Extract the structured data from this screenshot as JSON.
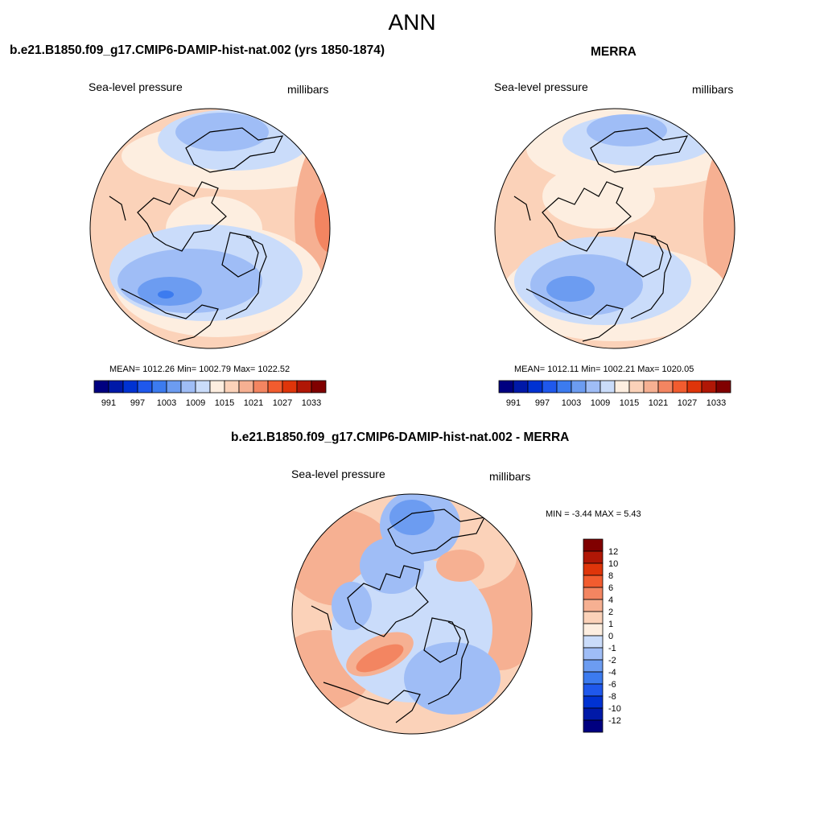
{
  "main_title": "ANN",
  "palette": [
    "#000080",
    "#0019a8",
    "#0032d2",
    "#1f58ec",
    "#3c7bef",
    "#6c9cf1",
    "#9fbdf6",
    "#cadcfa",
    "#fdeee0",
    "#fbd2b9",
    "#f6b092",
    "#f38561",
    "#f25c2f",
    "#df350a",
    "#b01706",
    "#800000"
  ],
  "panels": [
    {
      "title": "b.e21.B1850.f09_g17.CMIP6-DAMIP-hist-nat.002 (yrs 1850-1874)",
      "left_label": "Sea-level pressure",
      "right_label": "millibars",
      "stats": "MEAN= 1012.26  Min= 1002.79  Max= 1022.52",
      "colorbar_labels": [
        "991",
        "997",
        "1003",
        "1009",
        "1015",
        "1021",
        "1027",
        "1033"
      ]
    },
    {
      "title": "MERRA",
      "left_label": "Sea-level pressure",
      "right_label": "millibars",
      "stats": "MEAN= 1012.11  Min= 1002.21  Max= 1020.05",
      "colorbar_labels": [
        "991",
        "997",
        "1003",
        "1009",
        "1015",
        "1021",
        "1027",
        "1033"
      ]
    },
    {
      "title": "b.e21.B1850.f09_g17.CMIP6-DAMIP-hist-nat.002 - MERRA",
      "left_label": "Sea-level pressure",
      "right_label": "millibars",
      "stats": "MIN =  -3.44 MAX =   5.43",
      "colorbar_labels": [
        "12",
        "10",
        "8",
        "6",
        "4",
        "2",
        "1",
        "0",
        "-1",
        "-2",
        "-4",
        "-6",
        "-8",
        "-10",
        "-12"
      ]
    }
  ]
}
